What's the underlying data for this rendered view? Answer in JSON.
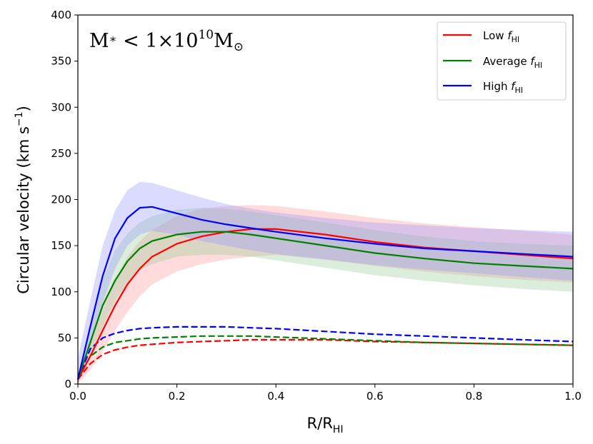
{
  "chart_data": {
    "type": "line",
    "annotation": {
      "m": "M",
      "star": "∗",
      "lt": " < 1×10",
      "exp": "10",
      "m2": "M",
      "sun": "⊙"
    },
    "xlabel": {
      "main": "R/R",
      "sub": "HI"
    },
    "ylabel": {
      "main": "Circular velocity (km s",
      "sup": "−1",
      "close": ")"
    },
    "xlim": [
      0,
      1
    ],
    "ylim": [
      0,
      400
    ],
    "xticks": [
      0.0,
      0.2,
      0.4,
      0.6,
      0.8,
      1.0
    ],
    "xtick_labels": [
      "0.0",
      "0.2",
      "0.4",
      "0.6",
      "0.8",
      "1.0"
    ],
    "yticks": [
      0,
      50,
      100,
      150,
      200,
      250,
      300,
      350,
      400
    ],
    "ytick_labels": [
      "0",
      "50",
      "100",
      "150",
      "200",
      "250",
      "300",
      "350",
      "400"
    ],
    "legend": {
      "location": "top-right",
      "entries": [
        {
          "name": "Low ",
          "var": "f",
          "sub": "HI",
          "color": "#ff0000"
        },
        {
          "name": "Average ",
          "var": "f",
          "sub": "HI",
          "color": "#008000"
        },
        {
          "name": "High ",
          "var": "f",
          "sub": "HI",
          "color": "#0000ff"
        }
      ]
    },
    "x": [
      0,
      0.025,
      0.05,
      0.075,
      0.1,
      0.125,
      0.15,
      0.2,
      0.25,
      0.3,
      0.35,
      0.4,
      0.5,
      0.6,
      0.7,
      0.8,
      0.9,
      1.0
    ],
    "series": [
      {
        "name": "Low f_HI",
        "color": "#ff0000",
        "band_color": "#ff9999",
        "solid": [
          5,
          30,
          58,
          85,
          108,
          125,
          138,
          152,
          160,
          165,
          168,
          168,
          162,
          154,
          148,
          144,
          140,
          136
        ],
        "upper": [
          12,
          45,
          80,
          112,
          138,
          155,
          167,
          182,
          190,
          193,
          194,
          193,
          187,
          180,
          174,
          170,
          166,
          162
        ],
        "lower": [
          0,
          15,
          35,
          58,
          78,
          95,
          108,
          122,
          130,
          135,
          138,
          140,
          135,
          128,
          122,
          117,
          113,
          110
        ],
        "dashed": [
          5,
          22,
          32,
          37,
          40,
          42,
          43,
          45,
          46,
          47,
          48,
          48,
          48,
          46,
          45,
          44,
          43,
          42
        ]
      },
      {
        "name": "Average f_HI",
        "color": "#008000",
        "band_color": "#99cc99",
        "solid": [
          5,
          45,
          85,
          112,
          133,
          147,
          155,
          162,
          165,
          165,
          162,
          158,
          150,
          142,
          136,
          131,
          128,
          125
        ],
        "upper": [
          10,
          62,
          112,
          145,
          163,
          175,
          182,
          189,
          191,
          190,
          187,
          183,
          175,
          167,
          160,
          155,
          152,
          150
        ],
        "lower": [
          0,
          30,
          62,
          90,
          110,
          123,
          130,
          138,
          140,
          140,
          138,
          134,
          126,
          118,
          112,
          107,
          103,
          100
        ],
        "dashed": [
          5,
          30,
          40,
          45,
          47,
          49,
          50,
          51,
          52,
          52,
          52,
          51,
          49,
          47,
          45,
          44,
          43,
          42
        ]
      },
      {
        "name": "High f_HI",
        "color": "#0000ff",
        "band_color": "#9999ff",
        "solid": [
          5,
          62,
          117,
          158,
          180,
          191,
          192,
          185,
          178,
          173,
          169,
          165,
          158,
          152,
          147,
          144,
          141,
          138
        ],
        "upper": [
          28,
          90,
          150,
          188,
          210,
          219,
          218,
          210,
          202,
          195,
          190,
          186,
          180,
          175,
          172,
          169,
          167,
          165
        ],
        "lower": [
          0,
          40,
          88,
          125,
          150,
          162,
          166,
          162,
          155,
          150,
          145,
          141,
          135,
          129,
          124,
          120,
          116,
          112
        ],
        "dashed": [
          5,
          38,
          50,
          55,
          58,
          60,
          61,
          62,
          62,
          62,
          61,
          60,
          57,
          54,
          52,
          50,
          48,
          46
        ]
      }
    ]
  }
}
